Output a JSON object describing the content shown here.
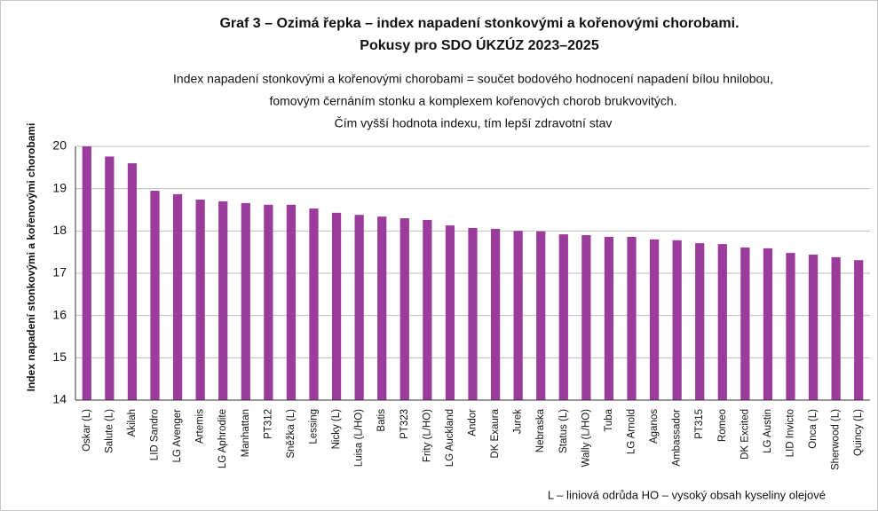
{
  "chart_data": {
    "type": "bar",
    "title": [
      "Graf 3 – Ozimá řepka – index napadení stonkovými a kořenovými chorobami.",
      "Pokusy pro SDO ÚKZÚZ 2023–2025"
    ],
    "subtitle": [
      "Index napadení stonkovými a kořenovými chorobami = součet bodového hodnocení napadení bílou hnilobou,",
      "fomovým černáním stonku a komplexem kořenových chorob brukvovitých.",
      "Čím vyšší hodnota indexu, tím lepší zdravotní stav"
    ],
    "y_label": "Index napadení stonkovými a kořenovými chorobami",
    "annotation": "L – liniová odrůda   HO – vysoký obsah kyseliny olejové",
    "categories": [
      "Oskar (L)",
      "Salute (L)",
      "Akilah",
      "LID Sandro",
      "LG Avenger",
      "Artemis",
      "LG Aphrodite",
      "Manhattan",
      "PT312",
      "Sněžka (L)",
      "Lessing",
      "Nicky (L)",
      "Luisa (L/HO)",
      "Batis",
      "PT323",
      "Frity (L/HO)",
      "LG Auckland",
      "Andor",
      "DK Exaura",
      "Jurek",
      "Nebraska",
      "Status (L)",
      "Wally (L/HO)",
      "Tuba",
      "LG Arnold",
      "Aganos",
      "Ambassador",
      "PT315",
      "Romeo",
      "DK Excited",
      "LG Austin",
      "LID Invicto",
      "Onca (L)",
      "Sherwood (L)",
      "Quincy (L)"
    ],
    "values": [
      20.0,
      19.76,
      19.6,
      18.95,
      18.87,
      18.74,
      18.7,
      18.66,
      18.62,
      18.62,
      18.53,
      18.43,
      18.38,
      18.34,
      18.3,
      18.26,
      18.13,
      18.07,
      18.05,
      18.0,
      17.99,
      17.92,
      17.9,
      17.86,
      17.86,
      17.8,
      17.78,
      17.71,
      17.69,
      17.61,
      17.59,
      17.48,
      17.44,
      17.38,
      17.31
    ],
    "color": "#9b3b9b",
    "ylim": [
      14,
      20
    ],
    "yticks": [
      14,
      15,
      16,
      17,
      18,
      19,
      20
    ],
    "grid": true
  }
}
